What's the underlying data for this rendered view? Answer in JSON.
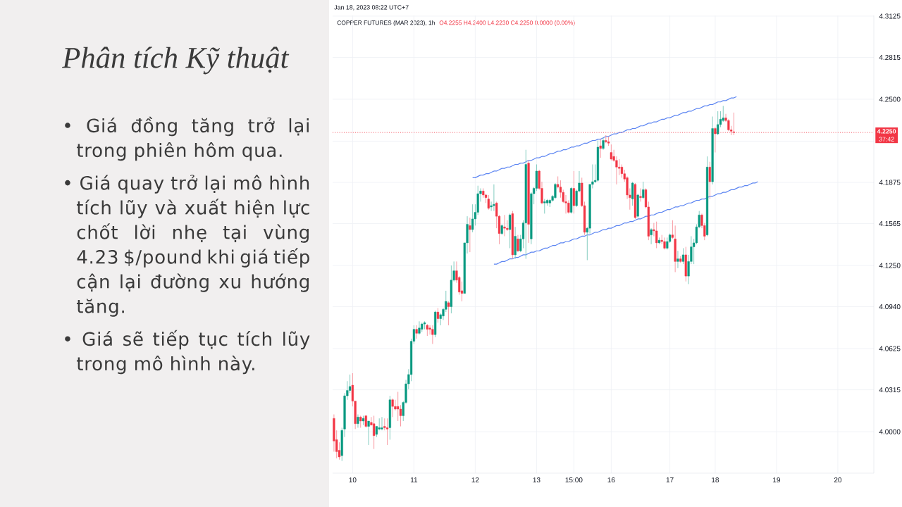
{
  "chart_data": {
    "type": "candlestick",
    "title": "Phân tích Kỹ thuật",
    "subtitle": "COPPER FUTURES (MAR 2023), 1h",
    "annotations": [
      "• Giá đồng tăng trở lại trong phiên hôm qua.",
      "• Giá quay trở lại mô hình tích lũy và xuất hiện lực chốt lời nhẹ tại vùng 4.23 $/pound khi giá tiếp cận lại đường xu hướng tăng.",
      "• Giá sẽ tiếp tục tích lũy trong mô hình này.",
      "Jan 18, 2023 08:22 UTC+7",
      "O4.2255 H4.2400 L4.2230 C4.2250 0.0000 (0.00%)",
      "37:42"
    ],
    "categories": [
      null,
      null,
      null,
      null,
      null,
      null,
      null,
      "10",
      null,
      null,
      null,
      null,
      null,
      null,
      null,
      null,
      null,
      null,
      null,
      null,
      null,
      null,
      null,
      null,
      null,
      null,
      null,
      null,
      null,
      null,
      "11",
      null,
      null,
      null,
      null,
      null,
      null,
      null,
      null,
      null,
      null,
      null,
      null,
      null,
      null,
      null,
      null,
      null,
      null,
      null,
      null,
      null,
      null,
      "12",
      null,
      null,
      null,
      null,
      null,
      null,
      null,
      null,
      null,
      null,
      null,
      null,
      null,
      null,
      null,
      null,
      null,
      null,
      null,
      null,
      null,
      null,
      "13",
      null,
      null,
      null,
      null,
      null,
      null,
      null,
      null,
      null,
      null,
      null,
      null,
      null,
      "15:00",
      null,
      null,
      null,
      null,
      null,
      null,
      null,
      null,
      null,
      null,
      null,
      null,
      null,
      "16",
      null,
      null,
      null,
      null,
      null,
      null,
      null,
      null,
      null,
      null,
      null,
      null,
      null,
      null,
      null,
      null,
      null,
      null,
      null,
      null,
      null,
      "17",
      null,
      null,
      null,
      null,
      null,
      null,
      null,
      null,
      null,
      null,
      null,
      null,
      null,
      null,
      null,
      null,
      "18",
      null,
      null,
      null,
      null,
      null,
      null,
      null,
      null,
      null,
      null,
      null,
      null,
      null,
      null,
      null,
      null,
      null,
      null,
      null,
      null,
      null,
      null,
      "19",
      null,
      null,
      null,
      null,
      null,
      null,
      null,
      null,
      null,
      null,
      null,
      null,
      null,
      null,
      null,
      null,
      null,
      null,
      null,
      null,
      null,
      null,
      "20",
      null,
      null,
      null,
      null,
      null,
      null,
      null,
      null,
      null,
      null,
      null,
      null,
      null
    ],
    "ohlc": [
      [
        4.01,
        4.013,
        3.985,
        3.993
      ],
      [
        3.994,
        4.001,
        3.98,
        3.985
      ],
      [
        3.986,
        3.992,
        3.979,
        3.981
      ],
      [
        3.982,
        4.003,
        3.978,
        4.001
      ],
      [
        4.002,
        4.029,
        3.996,
        4.027
      ],
      [
        4.027,
        4.038,
        4.024,
        4.031
      ],
      [
        4.031,
        4.043,
        4.029,
        4.034
      ],
      [
        4.035,
        4.044,
        4.019,
        4.023
      ],
      [
        4.023,
        4.023,
        4.002,
        4.006
      ],
      [
        4.006,
        4.013,
        4.003,
        4.011
      ],
      [
        4.011,
        4.012,
        4.003,
        4.008
      ],
      [
        4.008,
        4.012,
        4.005,
        4.01
      ],
      [
        4.012,
        4.012,
        4.003,
        4.004
      ],
      [
        4.004,
        4.008,
        3.99,
        4.008
      ],
      [
        4.007,
        4.011,
        4.005,
        4.005
      ],
      [
        4.006,
        4.012,
        3.987,
        3.997
      ],
      [
        3.998,
        4.004,
        3.996,
        4.004
      ],
      [
        4.002,
        4.01,
        4.001,
        4.003
      ],
      [
        4.002,
        4.011,
        4.001,
        4.003
      ],
      [
        4.004,
        4.01,
        4.001,
        4.003
      ],
      [
        4.003,
        4.01,
        3.99,
        4.002
      ],
      [
        4.003,
        4.027,
        3.994,
        4.024
      ],
      [
        4.024,
        4.025,
        4.011,
        4.019
      ],
      [
        4.019,
        4.024,
        4.016,
        4.017
      ],
      [
        4.019,
        4.03,
        4.008,
        4.017
      ],
      [
        4.017,
        4.02,
        4.004,
        4.012
      ],
      [
        4.012,
        4.023,
        4.008,
        4.022
      ],
      [
        4.022,
        4.039,
        4.021,
        4.036
      ],
      [
        4.036,
        4.047,
        4.032,
        4.043
      ],
      [
        4.043,
        4.07,
        4.038,
        4.068
      ],
      [
        4.068,
        4.08,
        4.066,
        4.077
      ],
      [
        4.077,
        4.08,
        4.07,
        4.074
      ],
      [
        4.074,
        4.083,
        4.073,
        4.078
      ],
      [
        4.077,
        4.082,
        4.075,
        4.081
      ],
      [
        4.081,
        4.083,
        4.077,
        4.082
      ],
      [
        4.08,
        4.081,
        4.072,
        4.077
      ],
      [
        4.078,
        4.08,
        4.073,
        4.077
      ],
      [
        4.077,
        4.08,
        4.066,
        4.073
      ],
      [
        4.073,
        4.091,
        4.071,
        4.09
      ],
      [
        4.09,
        4.093,
        4.082,
        4.085
      ],
      [
        4.085,
        4.089,
        4.08,
        4.088
      ],
      [
        4.087,
        4.093,
        4.084,
        4.092
      ],
      [
        4.092,
        4.106,
        4.09,
        4.098
      ],
      [
        4.097,
        4.098,
        4.08,
        4.094
      ],
      [
        4.094,
        4.125,
        4.089,
        4.114
      ],
      [
        4.114,
        4.128,
        4.113,
        4.121
      ],
      [
        4.121,
        4.128,
        4.112,
        4.114
      ],
      [
        4.116,
        4.117,
        4.103,
        4.105
      ],
      [
        4.106,
        4.113,
        4.098,
        4.104
      ],
      [
        4.104,
        4.142,
        4.104,
        4.142
      ],
      [
        4.142,
        4.162,
        4.134,
        4.156
      ],
      [
        4.155,
        4.161,
        4.135,
        4.152
      ],
      [
        4.152,
        4.171,
        4.15,
        4.16
      ],
      [
        4.16,
        4.171,
        4.155,
        4.165
      ],
      [
        4.165,
        4.185,
        4.163,
        4.179
      ],
      [
        4.179,
        4.183,
        4.173,
        4.181
      ],
      [
        4.181,
        4.183,
        4.176,
        4.178
      ],
      [
        4.178,
        4.179,
        4.172,
        4.176
      ],
      [
        4.175,
        4.178,
        4.167,
        4.168
      ],
      [
        4.169,
        4.173,
        4.166,
        4.17
      ],
      [
        4.17,
        4.186,
        4.166,
        4.171
      ],
      [
        4.172,
        4.173,
        4.153,
        4.162
      ],
      [
        4.162,
        4.163,
        4.141,
        4.149
      ],
      [
        4.149,
        4.156,
        4.148,
        4.155
      ],
      [
        4.154,
        4.163,
        4.147,
        4.153
      ],
      [
        4.153,
        4.159,
        4.151,
        4.152
      ],
      [
        4.152,
        4.164,
        4.138,
        4.163
      ],
      [
        4.164,
        4.166,
        4.13,
        4.133
      ],
      [
        4.133,
        4.154,
        4.13,
        4.147
      ],
      [
        4.145,
        4.148,
        4.135,
        4.136
      ],
      [
        4.136,
        4.148,
        4.135,
        4.145
      ],
      [
        4.145,
        4.159,
        4.138,
        4.157
      ],
      [
        4.157,
        4.212,
        4.13,
        4.201
      ],
      [
        4.202,
        4.204,
        4.142,
        4.156
      ],
      [
        4.145,
        4.18,
        4.141,
        4.179
      ],
      [
        4.179,
        4.184,
        4.171,
        4.183
      ],
      [
        4.183,
        4.201,
        4.181,
        4.196
      ],
      [
        4.196,
        4.197,
        4.182,
        4.183
      ],
      [
        4.183,
        4.188,
        4.171,
        4.172
      ],
      [
        4.172,
        4.175,
        4.164,
        4.173
      ],
      [
        4.172,
        4.175,
        4.17,
        4.174
      ],
      [
        4.172,
        4.175,
        4.169,
        4.174
      ],
      [
        4.174,
        4.178,
        4.173,
        4.177
      ],
      [
        4.176,
        4.187,
        4.175,
        4.186
      ],
      [
        4.186,
        4.192,
        4.183,
        4.184
      ],
      [
        4.184,
        4.189,
        4.176,
        4.18
      ],
      [
        4.18,
        4.182,
        4.172,
        4.173
      ],
      [
        4.173,
        4.178,
        4.164,
        4.172
      ],
      [
        4.172,
        4.174,
        4.164,
        4.165
      ],
      [
        4.165,
        4.184,
        4.164,
        4.183
      ],
      [
        4.183,
        4.196,
        4.164,
        4.17
      ],
      [
        4.17,
        4.182,
        4.169,
        4.181
      ],
      [
        4.181,
        4.196,
        4.18,
        4.187
      ],
      [
        4.187,
        4.191,
        4.169,
        4.17
      ],
      [
        4.17,
        4.173,
        4.148,
        4.15
      ],
      [
        4.15,
        4.154,
        4.129,
        4.153
      ],
      [
        4.153,
        4.186,
        4.149,
        4.186
      ],
      [
        4.186,
        4.201,
        4.183,
        4.188
      ],
      [
        4.188,
        4.201,
        4.187,
        4.189
      ],
      [
        4.189,
        4.219,
        4.188,
        4.214
      ],
      [
        4.215,
        4.22,
        4.206,
        4.213
      ],
      [
        4.213,
        4.221,
        4.212,
        4.219
      ],
      [
        4.219,
        4.223,
        4.217,
        4.218
      ],
      [
        4.218,
        4.222,
        4.215,
        4.217
      ],
      [
        4.21,
        4.216,
        4.204,
        4.205
      ],
      [
        4.207,
        4.212,
        4.203,
        4.204
      ],
      [
        4.204,
        4.207,
        4.186,
        4.199
      ],
      [
        4.199,
        4.205,
        4.193,
        4.198
      ],
      [
        4.199,
        4.201,
        4.191,
        4.194
      ],
      [
        4.194,
        4.197,
        4.188,
        4.19
      ],
      [
        4.191,
        4.192,
        4.175,
        4.178
      ],
      [
        4.178,
        4.183,
        4.167,
        4.176
      ],
      [
        4.175,
        4.188,
        4.17,
        4.187
      ],
      [
        4.186,
        4.187,
        4.16,
        4.161
      ],
      [
        4.162,
        4.179,
        4.161,
        4.178
      ],
      [
        4.177,
        4.183,
        4.173,
        4.176
      ],
      [
        4.176,
        4.188,
        4.175,
        4.182
      ],
      [
        4.182,
        4.183,
        4.168,
        4.169
      ],
      [
        4.169,
        4.173,
        4.144,
        4.147
      ],
      [
        4.148,
        4.153,
        4.141,
        4.152
      ],
      [
        4.152,
        4.157,
        4.147,
        4.151
      ],
      [
        4.151,
        4.158,
        4.138,
        4.142
      ],
      [
        4.142,
        4.146,
        4.141,
        4.144
      ],
      [
        4.144,
        4.148,
        4.141,
        4.143
      ],
      [
        4.143,
        4.146,
        4.137,
        4.138
      ],
      [
        4.138,
        4.146,
        4.137,
        4.143
      ],
      [
        4.143,
        4.149,
        4.142,
        4.148
      ],
      [
        4.148,
        4.159,
        4.145,
        4.146
      ],
      [
        4.145,
        4.155,
        4.12,
        4.128
      ],
      [
        4.128,
        4.136,
        4.123,
        4.13
      ],
      [
        4.13,
        4.132,
        4.127,
        4.128
      ],
      [
        4.128,
        4.138,
        4.126,
        4.133
      ],
      [
        4.133,
        4.139,
        4.113,
        4.117
      ],
      [
        4.117,
        4.133,
        4.111,
        4.128
      ],
      [
        4.128,
        4.147,
        4.126,
        4.139
      ],
      [
        4.139,
        4.145,
        4.126,
        4.142
      ],
      [
        4.142,
        4.156,
        4.141,
        4.154
      ],
      [
        4.154,
        4.166,
        4.153,
        4.163
      ],
      [
        4.163,
        4.164,
        4.153,
        4.155
      ],
      [
        4.155,
        4.157,
        4.144,
        4.147
      ],
      [
        4.148,
        4.207,
        4.147,
        4.199
      ],
      [
        4.199,
        4.203,
        4.175,
        4.188
      ],
      [
        4.188,
        4.237,
        4.186,
        4.228
      ],
      [
        4.228,
        4.229,
        4.21,
        4.224
      ],
      [
        4.224,
        4.241,
        4.223,
        4.231
      ],
      [
        4.231,
        4.241,
        4.229,
        4.235
      ],
      [
        4.234,
        4.245,
        4.233,
        4.236
      ],
      [
        4.236,
        4.239,
        4.233,
        4.234
      ],
      [
        4.234,
        4.235,
        4.226,
        4.227
      ],
      [
        4.227,
        4.23,
        4.223,
        4.226
      ],
      [
        4.2255,
        4.24,
        4.223,
        4.225
      ],
      null,
      null,
      null,
      null,
      null,
      null,
      null,
      null,
      null,
      null,
      null,
      null,
      null,
      null,
      null,
      null,
      null,
      null,
      null,
      null,
      null,
      null,
      null,
      null,
      null,
      null,
      null,
      null,
      null,
      null,
      null,
      null,
      null,
      null,
      null,
      null,
      null,
      null,
      null,
      null,
      null,
      null,
      null,
      null,
      null,
      null,
      null,
      null,
      null,
      null,
      null,
      null
    ],
    "colors": [
      "#f23645",
      "#f23645",
      "#f23645",
      "#089981",
      "#089981",
      "#089981",
      "#089981",
      "#f23645",
      "#f23645",
      "#089981",
      "#f23645",
      "#089981",
      "#f23645",
      "#089981",
      "#f23645",
      "#f23645",
      "#089981",
      "#089981",
      "#089981",
      "#f23645",
      "#f23645",
      "#089981",
      "#f23645",
      "#f23645",
      "#f23645",
      "#f23645",
      "#089981",
      "#089981",
      "#089981",
      "#089981",
      "#089981",
      "#f23645",
      "#089981",
      "#089981",
      "#089981",
      "#f23645",
      "#f23645",
      "#f23645",
      "#089981",
      "#f23645",
      "#089981",
      "#089981",
      "#089981",
      "#f23645",
      "#089981",
      "#089981",
      "#f23645",
      "#f23645",
      "#f23645",
      "#089981",
      "#089981",
      "#f23645",
      "#089981",
      "#089981",
      "#089981",
      "#089981",
      "#f23645",
      "#f23645",
      "#f23645",
      "#089981",
      "#089981",
      "#f23645",
      "#f23645",
      "#089981",
      "#f23645",
      "#f23645",
      "#089981",
      "#f23645",
      "#089981",
      "#f23645",
      "#089981",
      "#089981",
      "#089981",
      "#f23645",
      "#089981",
      "#089981",
      "#089981",
      "#f23645",
      "#f23645",
      "#089981",
      "#089981",
      "#089981",
      "#089981",
      "#089981",
      "#f23645",
      "#f23645",
      "#f23645",
      "#f23645",
      "#f23645",
      "#089981",
      "#f23645",
      "#089981",
      "#089981",
      "#f23645",
      "#f23645",
      "#089981",
      "#089981",
      "#089981",
      "#089981",
      "#089981",
      "#f23645",
      "#089981",
      "#f23645",
      "#f23645",
      "#f23645",
      "#f23645",
      "#f23645",
      "#f23645",
      "#f23645",
      "#f23645",
      "#f23645",
      "#f23645",
      "#089981",
      "#f23645",
      "#089981",
      "#f23645",
      "#089981",
      "#f23645",
      "#f23645",
      "#089981",
      "#f23645",
      "#f23645",
      "#089981",
      "#f23645",
      "#f23645",
      "#089981",
      "#089981",
      "#f23645",
      "#f23645",
      "#089981",
      "#f23645",
      "#089981",
      "#f23645",
      "#089981",
      "#089981",
      "#089981",
      "#089981",
      "#089981",
      "#f23645",
      "#f23645",
      "#089981",
      "#f23645",
      "#089981",
      "#f23645",
      "#089981",
      "#089981",
      "#089981",
      "#f23645",
      "#f23645",
      "#f23645",
      "#f23645",
      null,
      null,
      null,
      null,
      null,
      null,
      null,
      null,
      null,
      null,
      null,
      null,
      null,
      null,
      null,
      null,
      null,
      null,
      null,
      null,
      null,
      null,
      null,
      null,
      null,
      null,
      null,
      null,
      null,
      null,
      null,
      null,
      null,
      null,
      null,
      null,
      null,
      null,
      null,
      null,
      null,
      null,
      null,
      null,
      null,
      null,
      null,
      null,
      null,
      null,
      null,
      null
    ],
    "series": [
      {
        "type": "line",
        "color": "#5c85f2",
        "values": [
          null,
          null,
          null,
          null,
          null,
          null,
          null,
          null,
          null,
          null,
          null,
          null,
          null,
          null,
          null,
          null,
          null,
          null,
          null,
          null,
          null,
          null,
          null,
          null,
          null,
          null,
          null,
          null,
          null,
          null,
          null,
          null,
          null,
          null,
          null,
          null,
          null,
          null,
          null,
          null,
          null,
          null,
          null,
          null,
          null,
          null,
          null,
          null,
          null,
          null,
          null,
          null,
          4.191,
          4.191,
          4.192,
          4.193,
          4.193,
          4.194,
          4.194,
          4.195,
          4.196,
          4.196,
          4.197,
          4.198,
          4.198,
          4.199,
          4.199,
          4.2,
          4.201,
          4.201,
          4.202,
          4.202,
          4.203,
          4.204,
          4.204,
          4.205,
          4.206,
          4.206,
          4.207,
          4.207,
          4.208,
          4.209,
          4.209,
          4.21,
          4.211,
          4.211,
          4.212,
          4.212,
          4.213,
          4.214,
          4.214,
          4.215,
          4.215,
          4.216,
          4.217,
          4.217,
          4.218,
          4.219,
          4.219,
          4.22,
          4.22,
          4.221,
          4.222,
          4.222,
          4.223,
          4.224,
          4.224,
          4.225,
          4.225,
          4.226,
          4.227,
          4.227,
          4.228,
          4.228,
          4.229,
          4.23,
          4.23,
          4.231,
          4.232,
          4.232,
          4.233,
          4.233,
          4.234,
          4.235,
          4.235,
          4.236,
          4.236,
          4.237,
          4.238,
          4.238,
          4.239,
          4.24,
          4.24,
          4.241,
          4.241,
          4.242,
          4.243,
          4.243,
          4.244,
          4.245,
          4.245,
          4.246,
          4.246,
          4.247,
          4.248,
          4.248,
          4.249,
          4.249,
          4.25,
          4.251,
          4.251,
          4.252,
          null,
          null,
          null,
          null,
          null,
          null,
          null,
          null,
          null,
          null,
          null,
          null,
          null,
          null,
          null,
          null,
          null,
          null,
          null,
          null,
          null,
          null,
          null,
          null,
          null,
          null,
          null,
          null,
          null,
          null,
          null,
          null,
          null,
          null,
          null,
          null,
          null,
          null,
          null,
          null,
          null,
          null,
          null,
          null,
          null,
          null,
          null,
          null,
          null,
          null,
          null
        ]
      },
      {
        "type": "line",
        "color": "#5c85f2",
        "values": [
          null,
          null,
          null,
          null,
          null,
          null,
          null,
          null,
          null,
          null,
          null,
          null,
          null,
          null,
          null,
          null,
          null,
          null,
          null,
          null,
          null,
          null,
          null,
          null,
          null,
          null,
          null,
          null,
          null,
          null,
          null,
          null,
          null,
          null,
          null,
          null,
          null,
          null,
          null,
          null,
          null,
          null,
          null,
          null,
          null,
          null,
          null,
          null,
          null,
          null,
          null,
          null,
          null,
          null,
          null,
          null,
          null,
          null,
          null,
          null,
          4.126,
          4.126,
          4.127,
          4.128,
          4.128,
          4.129,
          4.13,
          4.13,
          4.131,
          4.131,
          4.132,
          4.133,
          4.133,
          4.134,
          4.135,
          4.135,
          4.136,
          4.136,
          4.137,
          4.138,
          4.138,
          4.139,
          4.14,
          4.14,
          4.141,
          4.142,
          4.142,
          4.143,
          4.143,
          4.144,
          4.145,
          4.145,
          4.146,
          4.147,
          4.147,
          4.148,
          4.148,
          4.149,
          4.15,
          4.15,
          4.151,
          4.152,
          4.152,
          4.153,
          4.153,
          4.154,
          4.155,
          4.155,
          4.156,
          4.157,
          4.157,
          4.158,
          4.158,
          4.159,
          4.16,
          4.16,
          4.161,
          4.162,
          4.162,
          4.163,
          4.163,
          4.164,
          4.165,
          4.165,
          4.166,
          4.167,
          4.167,
          4.168,
          4.169,
          4.169,
          4.17,
          4.17,
          4.171,
          4.172,
          4.172,
          4.173,
          4.174,
          4.174,
          4.175,
          4.175,
          4.176,
          4.177,
          4.177,
          4.178,
          4.179,
          4.179,
          4.18,
          4.18,
          4.181,
          4.182,
          4.182,
          4.183,
          4.184,
          4.184,
          4.185,
          4.185,
          4.186,
          4.187,
          4.187,
          4.188,
          null,
          null,
          null,
          null,
          null,
          null,
          null,
          null,
          null,
          null,
          null,
          null,
          null,
          null,
          null,
          null,
          null,
          null,
          null,
          null,
          null,
          null,
          null,
          null,
          null,
          null,
          null,
          null,
          null,
          null,
          null,
          null,
          null,
          null,
          null,
          null,
          null,
          null,
          null,
          null,
          null,
          null,
          null
        ]
      }
    ],
    "ylim": [
      3.9688,
      4.313
    ],
    "yticks": [
      {
        "value": 4.0,
        "label": "4.0000"
      },
      {
        "value": 4.0315,
        "label": "4.0315"
      },
      {
        "value": 4.0625,
        "label": "4.0625"
      },
      {
        "value": 4.094,
        "label": "4.0940"
      },
      {
        "value": 4.125,
        "label": "4.1250"
      },
      {
        "value": 4.1565,
        "label": "4.1565"
      },
      {
        "value": 4.1875,
        "label": "4.1875"
      },
      {
        "value": 4.2185,
        "label": null
      },
      {
        "value": 4.25,
        "label": "4.2500"
      },
      {
        "value": 4.2815,
        "label": "4.2815"
      },
      {
        "value": 4.3125,
        "label": "4.3125"
      }
    ],
    "ref_lines": [
      {
        "axis": "y",
        "value": 4.225,
        "label": "4.2250",
        "color": "#f23645",
        "line_style": "dotted"
      }
    ],
    "grid": true
  }
}
